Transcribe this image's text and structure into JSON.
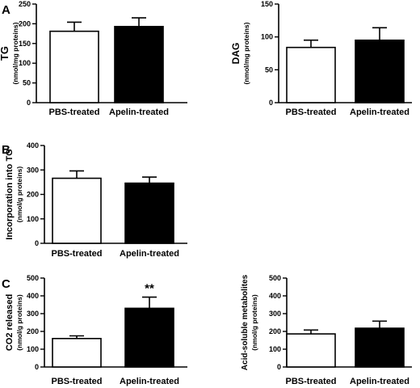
{
  "panel_labels": {
    "a": "A",
    "b": "B",
    "c": "C"
  },
  "chart_data": [
    {
      "type": "bar",
      "panel": "A",
      "categories": [
        "PBS-treated",
        "Apelin-treated"
      ],
      "values": [
        181,
        193
      ],
      "errors": [
        23,
        22
      ],
      "bar_colors": [
        "#ffffff",
        "#000000"
      ],
      "ylabel": "TG",
      "yunit": "(nmol/mg proteins)",
      "ylim": [
        0,
        250
      ],
      "yticks": [
        "0",
        "50",
        "100",
        "150",
        "200",
        "250"
      ],
      "annotations": [
        "",
        ""
      ]
    },
    {
      "type": "bar",
      "panel": "",
      "categories": [
        "PBS-treated",
        "Apelin-treated"
      ],
      "values": [
        84,
        95
      ],
      "errors": [
        11,
        19
      ],
      "bar_colors": [
        "#ffffff",
        "#000000"
      ],
      "ylabel": "DAG",
      "yunit": "(nmol/mg proteins)",
      "ylim": [
        0,
        150
      ],
      "yticks": [
        "0",
        "50",
        "100",
        "150"
      ],
      "annotations": [
        "",
        ""
      ]
    },
    {
      "type": "bar",
      "panel": "B",
      "categories": [
        "PBS-treated",
        "Apelin-treated"
      ],
      "values": [
        266,
        246
      ],
      "errors": [
        30,
        25
      ],
      "bar_colors": [
        "#ffffff",
        "#000000"
      ],
      "ylabel": "Incorporation into TG",
      "yunit": "(nmol/g proteins)",
      "ylim": [
        0,
        400
      ],
      "yticks": [
        "0",
        "100",
        "200",
        "300",
        "400"
      ],
      "annotations": [
        "",
        ""
      ]
    },
    {
      "type": "bar",
      "panel": "C",
      "categories": [
        "PBS-treated",
        "Apelin-treated"
      ],
      "values": [
        160,
        330
      ],
      "errors": [
        15,
        63
      ],
      "bar_colors": [
        "#ffffff",
        "#000000"
      ],
      "ylabel": "CO2 released",
      "yunit": "(nmol/g proteins)",
      "ylim": [
        0,
        500
      ],
      "yticks": [
        "0",
        "100",
        "200",
        "300",
        "400",
        "500"
      ],
      "annotations": [
        "",
        "**"
      ]
    },
    {
      "type": "bar",
      "panel": "",
      "categories": [
        "PBS-treated",
        "Apelin-treated"
      ],
      "values": [
        186,
        218
      ],
      "errors": [
        22,
        40
      ],
      "bar_colors": [
        "#ffffff",
        "#000000"
      ],
      "ylabel": "Acid-soluble metabolites",
      "yunit": "(nmol/g proteins)",
      "ylim": [
        0,
        500
      ],
      "yticks": [
        "0",
        "100",
        "200",
        "300",
        "400",
        "500"
      ],
      "annotations": [
        "",
        ""
      ]
    }
  ]
}
